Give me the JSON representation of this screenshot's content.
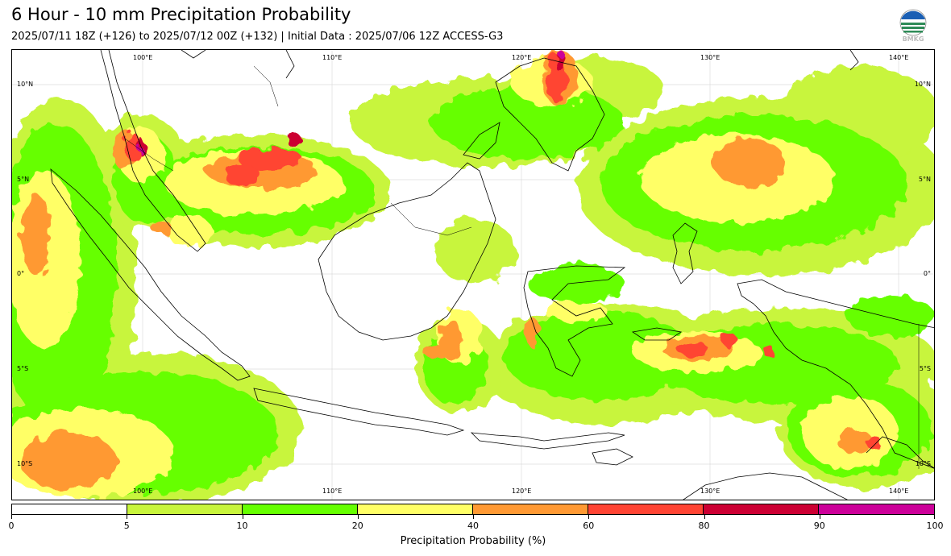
{
  "header": {
    "title": "6 Hour - 10 mm Precipitation Probability",
    "subtitle": "2025/07/11 18Z (+126) to 2025/07/12 00Z (+132) | Initial Data : 2025/07/06 12Z ACCESS-G3",
    "logo_text": "BMKG"
  },
  "map": {
    "top_lon_labels": [
      "100°E",
      "110°E",
      "120°E",
      "130°E",
      "140°E"
    ],
    "bottom_lon_labels": [
      "100°E",
      "110°E",
      "120°E",
      "130°E",
      "140°E"
    ],
    "left_lat_labels": [
      "10°N",
      "5°N",
      "0°",
      "5°S",
      "10°S"
    ],
    "right_lat_labels": [
      "10°N",
      "5°N",
      "0°",
      "5°S",
      "10°S"
    ]
  },
  "colorbar": {
    "label": "Precipitation Probability (%)",
    "ticks": [
      "0",
      "5",
      "10",
      "20",
      "40",
      "60",
      "80",
      "90",
      "100"
    ],
    "colors": [
      "#ffffff",
      "#c8f53c",
      "#66ff00",
      "#ffff66",
      "#ff9933",
      "#ff4433",
      "#cc0033",
      "#cc0099"
    ]
  }
}
